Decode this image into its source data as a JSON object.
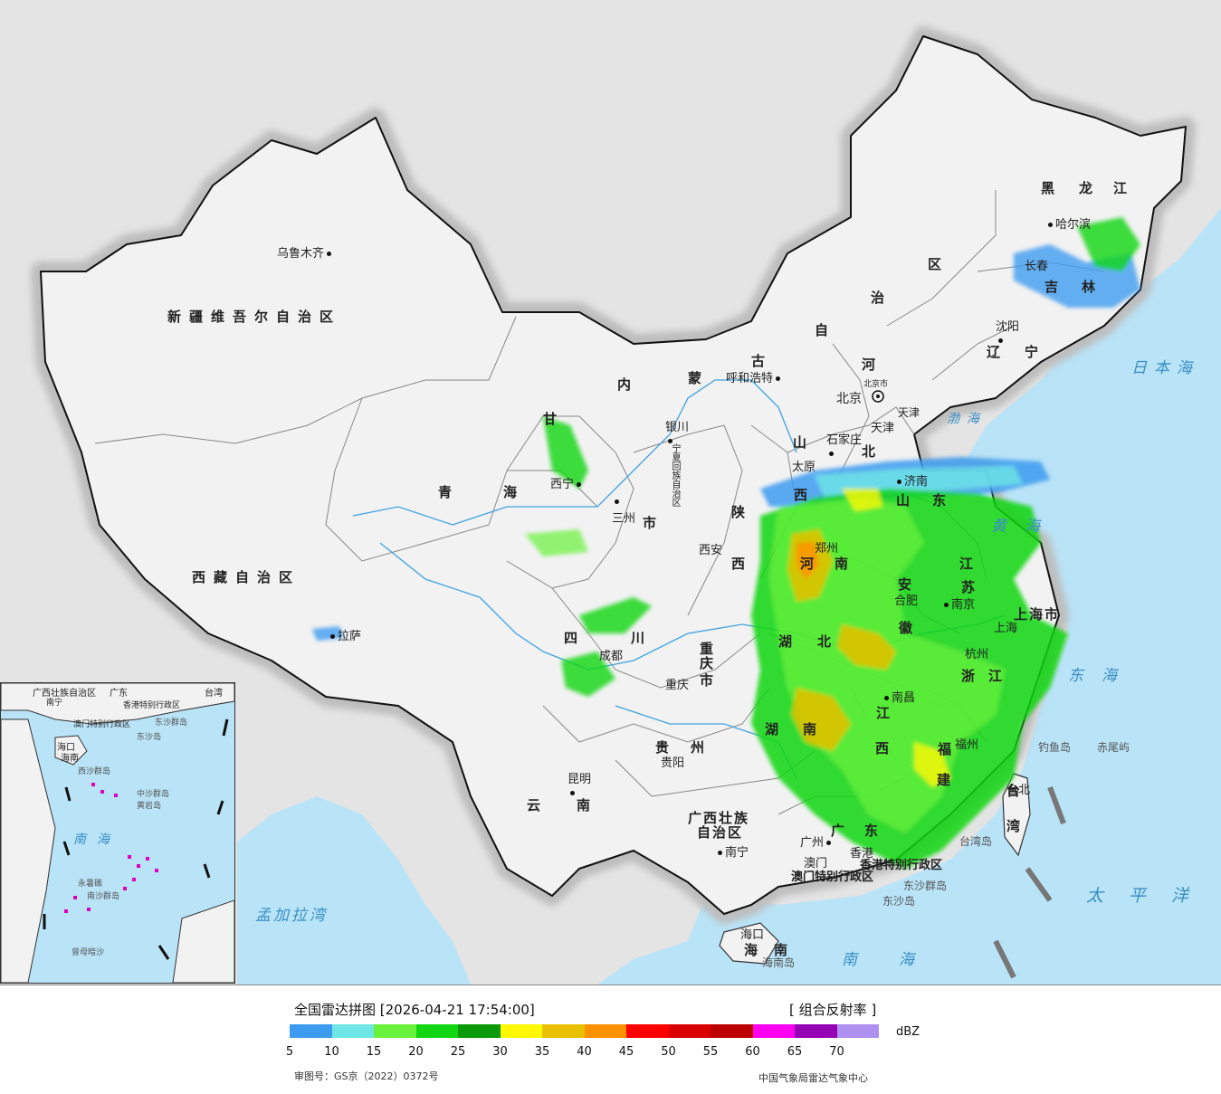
{
  "map": {
    "labels": {
      "xinjiang": "新疆维吾尔自治区",
      "tibet": "西藏自治区",
      "qinghai_a": "青",
      "qinghai_b": "海",
      "gansu": "甘",
      "sichuan_a": "四",
      "sichuan_b": "川",
      "yunnan_a": "云",
      "yunnan_b": "南",
      "guizhou_a": "贵",
      "guizhou_b": "州",
      "guangxi_a": "广西壮族",
      "guangxi_b": "自治区",
      "guangdong_a": "广",
      "guangdong_b": "东",
      "hainan_a": "海",
      "hainan_b": "南",
      "hunan_a": "湖",
      "hunan_b": "南",
      "hubei_a": "湖",
      "hubei_b": "北",
      "jiangxi_a": "江",
      "jiangxi_b": "西",
      "fujian_a": "福",
      "fujian_b": "建",
      "zhejiang_a": "浙",
      "zhejiang_b": "江",
      "anhui_a": "安",
      "anhui_b": "徽",
      "jiangsu_a": "江",
      "jiangsu_b": "苏",
      "shandong_a": "山",
      "shandong_b": "东",
      "henan_a": "河",
      "henan_b": "南",
      "shanxi_a": "山",
      "shanxi_b": "西",
      "shaanxi_a": "陕",
      "shaanxi_b": "西",
      "hebei_a": "河",
      "hebei_b": "北",
      "neimenggu_a": "内",
      "neimenggu_b": "蒙",
      "neimenggu_c": "古",
      "neimenggu_d": "自",
      "neimenggu_e": "治",
      "neimenggu_f": "区",
      "liaoning_a": "辽",
      "liaoning_b": "宁",
      "jilin_a": "吉",
      "jilin_b": "林",
      "heilongjiang_a": "黑",
      "heilongjiang_b": "龙",
      "heilongjiang_c": "江",
      "chongqing_a": "重",
      "chongqing_b": "庆",
      "chongqing_c": "市",
      "shanghai": "上海市",
      "tianjin": "天津",
      "beijing_city": "北京市",
      "taiwan_a": "台",
      "taiwan_b": "湾",
      "ningxia": "宁夏回族自治区",
      "gansu_city": "市",
      "hk_sar": "香港特别行政区",
      "macao_sar": "澳门特别行政区"
    },
    "cities": {
      "urumqi": "乌鲁木齐",
      "lhasa": "拉萨",
      "xining": "西宁",
      "lanzhou": "三州",
      "yinchuan": "银川",
      "hohhot": "呼和浩特",
      "beijing": "北京",
      "tianjin": "天津",
      "shijiazhuang": "石家庄",
      "taiyuan": "太原",
      "jinan": "济南",
      "zhengzhou": "郑州",
      "xian": "西安",
      "chengdu": "成都",
      "chongqing": "重庆",
      "guiyang": "贵阳",
      "kunming": "昆明",
      "nanning": "南宁",
      "guangzhou": "广州",
      "hongkong": "香港",
      "macao": "澳门",
      "haikou": "海口",
      "nanchang": "南昌",
      "fuzhou": "福州",
      "hangzhou": "杭州",
      "hefei": "合肥",
      "nanjing": "南京",
      "shanghai": "上海",
      "shenyang": "沈阳",
      "changchun": "长春",
      "harbin": "哈尔滨",
      "taibei": "台北"
    },
    "islands": {
      "diaoyu": "钓鱼岛",
      "chiwei": "赤尾屿",
      "dongsha_qd": "东沙群岛",
      "dongsha": "东沙岛",
      "hainan_island": "海南岛",
      "taiwan_island": "台湾岛"
    },
    "seas": {
      "japan_sea": "日本海",
      "bohai": "渤海",
      "huanghai": "黄海",
      "donghai": "东海",
      "pacific": "太平洋",
      "nanhai": "南海",
      "bengal": "孟加拉湾"
    },
    "inset": {
      "guangxi": "广西壮族自治区",
      "guangdong": "广东",
      "nanning": "南宁",
      "taiwan": "台湾",
      "hksar": "香港特别行政区",
      "macao": "澳门特别行政区",
      "dongsha_qd": "东沙群岛",
      "dongsha": "东沙岛",
      "hainan": "海南",
      "haikou": "海口",
      "xisha": "西沙群岛",
      "zhongsha": "中沙群岛",
      "huangyan": "黄岩岛",
      "nansha": "南沙群岛",
      "yongshu": "永暑礁",
      "nanhai": "南海",
      "zengmu": "曾母暗沙"
    }
  },
  "legend": {
    "title": "全国雷达拼图 [2026-04-21 17:54:00]",
    "product": "[ 组合反射率 ]",
    "unit": "dBZ",
    "ticks": [
      "5",
      "10",
      "15",
      "20",
      "25",
      "30",
      "35",
      "40",
      "45",
      "50",
      "55",
      "60",
      "65",
      "70"
    ],
    "colors": [
      "#3d9cf0",
      "#6ee6e6",
      "#6af23a",
      "#13d613",
      "#0a9a0a",
      "#fff800",
      "#e8c000",
      "#ff9000",
      "#ff0000",
      "#d90000",
      "#bd0000",
      "#ff00f0",
      "#9600b4",
      "#ad90f0"
    ],
    "approval": "审图号：GS京（2022）0372号",
    "credit": "中国气象局雷达气象中心"
  }
}
